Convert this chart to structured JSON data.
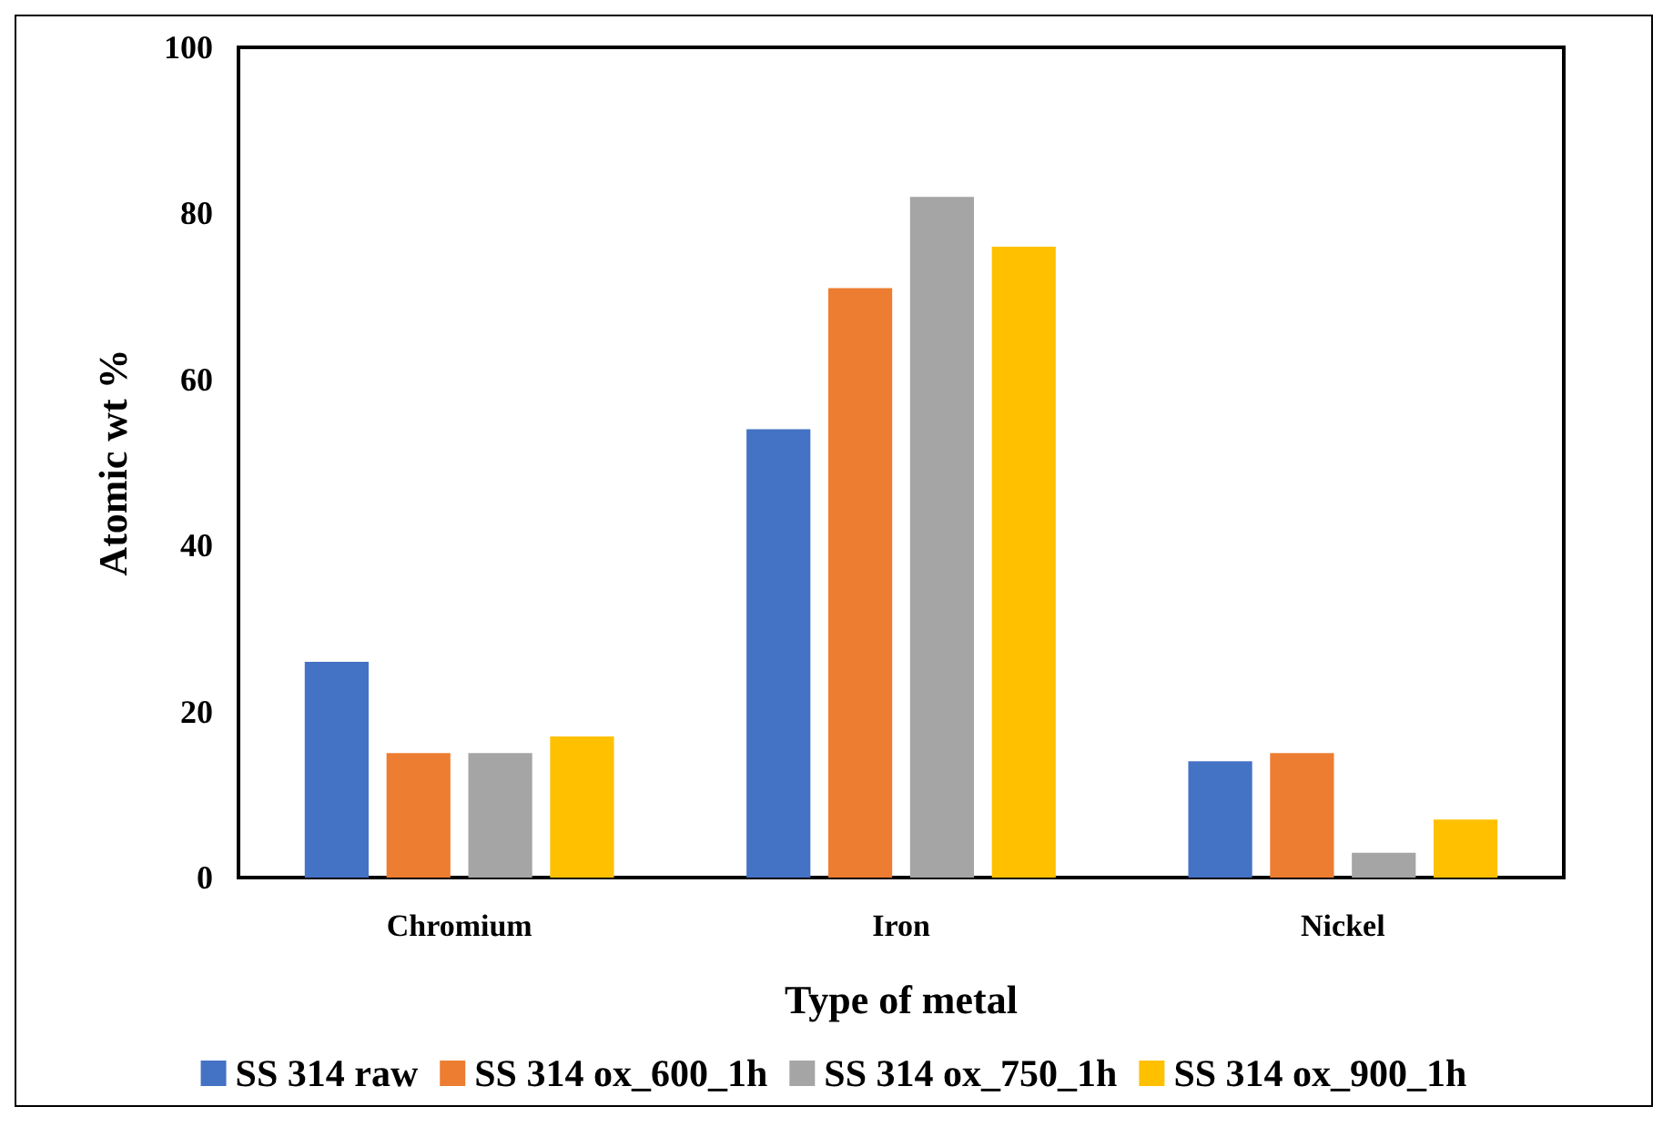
{
  "chart_data": {
    "type": "bar",
    "xlabel": "Type of metal",
    "ylabel": "Atomic wt %",
    "categories": [
      "Chromium",
      "Iron",
      "Nickel"
    ],
    "series": [
      {
        "name": "SS 314 raw",
        "color": "#4472c4",
        "values": [
          26,
          54,
          14
        ]
      },
      {
        "name": "SS 314 ox_600_1h",
        "color": "#ed7d31",
        "values": [
          15,
          71,
          15
        ]
      },
      {
        "name": "SS 314 ox_750_1h",
        "color": "#a5a5a5",
        "values": [
          15,
          82,
          3
        ]
      },
      {
        "name": "SS 314 ox_900_1h",
        "color": "#ffc000",
        "values": [
          17,
          76,
          7
        ]
      }
    ],
    "ylim": [
      0,
      100
    ],
    "yticks": [
      0,
      20,
      40,
      60,
      80,
      100
    ],
    "grid": false,
    "legend": "bottom"
  }
}
